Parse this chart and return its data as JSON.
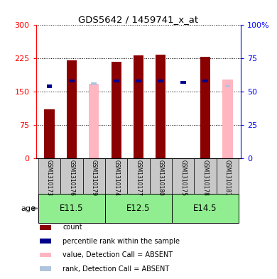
{
  "title": "GDS5642 / 1459741_x_at",
  "samples": [
    "GSM1310173",
    "GSM1310176",
    "GSM1310179",
    "GSM1310174",
    "GSM1310177",
    "GSM1310180",
    "GSM1310175",
    "GSM1310178",
    "GSM1310181"
  ],
  "groups": [
    {
      "label": "E11.5",
      "start": 0,
      "end": 3
    },
    {
      "label": "E12.5",
      "start": 3,
      "end": 6
    },
    {
      "label": "E14.5",
      "start": 6,
      "end": 9
    }
  ],
  "count_values": [
    110,
    220,
    0,
    218,
    232,
    234,
    0,
    228,
    0
  ],
  "rank_values": [
    54,
    58,
    0,
    58,
    58,
    58,
    57,
    58,
    57
  ],
  "absent_value": [
    0,
    0,
    168,
    0,
    0,
    0,
    0,
    0,
    178
  ],
  "absent_rank": [
    0,
    0,
    56,
    0,
    0,
    0,
    0,
    0,
    54
  ],
  "is_absent": [
    false,
    false,
    true,
    false,
    false,
    false,
    false,
    false,
    true
  ],
  "ylim_left": [
    0,
    300
  ],
  "ylim_right": [
    0,
    100
  ],
  "yticks_left": [
    0,
    75,
    150,
    225,
    300
  ],
  "yticks_right": [
    0,
    25,
    50,
    75,
    100
  ],
  "ytick_labels_left": [
    "0",
    "75",
    "150",
    "225",
    "300"
  ],
  "ytick_labels_right": [
    "0",
    "25",
    "50",
    "75",
    "100%"
  ],
  "color_count": "#8B0000",
  "color_rank": "#00008B",
  "color_absent_value": "#FFB6C1",
  "color_absent_rank": "#B0C4DE",
  "group_bg_color": "#90EE90",
  "sample_bg_color": "#C8C8C8",
  "grid_color": "black",
  "bar_width": 0.45,
  "rank_bar_width": 0.25,
  "age_label": "age"
}
